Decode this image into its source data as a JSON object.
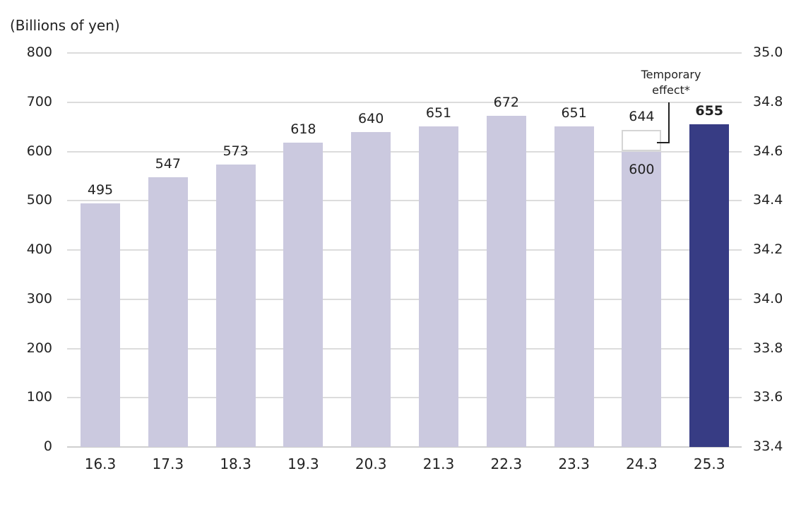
{
  "chart_data": {
    "type": "bar",
    "title": "",
    "ylabel": "(Billions of yen)",
    "xlabel": "",
    "ylim": [
      0,
      800
    ],
    "y_ticks": [
      "0",
      "100",
      "200",
      "300",
      "400",
      "500",
      "600",
      "700",
      "800"
    ],
    "y2lim": [
      33.4,
      35.0
    ],
    "y2_ticks": [
      "33.4",
      "33.6",
      "33.8",
      "34.0",
      "34.2",
      "34.4",
      "34.6",
      "34.8",
      "35.0"
    ],
    "categories": [
      "16.3",
      "17.3",
      "18.3",
      "19.3",
      "20.3",
      "21.3",
      "22.3",
      "23.3",
      "24.3",
      "25.3"
    ],
    "values": [
      495,
      547,
      573,
      618,
      640,
      651,
      672,
      651,
      600,
      655
    ],
    "value_labels": [
      "495",
      "547",
      "573",
      "618",
      "640",
      "651",
      "672",
      "651",
      "600",
      "655"
    ],
    "temporary_effect": {
      "category": "24.3",
      "total": 644,
      "total_label": "644",
      "base": 600,
      "label": "Temporary effect*"
    },
    "highlight_index": 9,
    "colors": {
      "bar": "#cbc9df",
      "highlight": "#373c84",
      "grid": "#dcdcdc"
    },
    "grid": true,
    "legend": null
  }
}
